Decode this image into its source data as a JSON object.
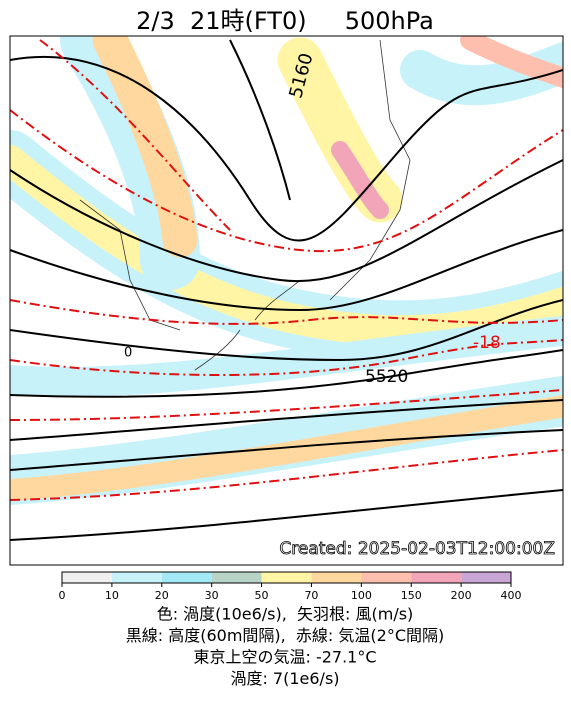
{
  "header": {
    "title": "2/3  21時(FT0)     500hPa"
  },
  "map": {
    "contour_labels": [
      "5160",
      "5520",
      "-18",
      "0"
    ],
    "created": "Created: 2025-02-03T12:00:00Z"
  },
  "colorbar": {
    "ticks": [
      0,
      10,
      20,
      30,
      50,
      70,
      100,
      150,
      200,
      400
    ],
    "colors": [
      "#f0f0f0",
      "#c8f2fa",
      "#a2e8f5",
      "#b7d4c6",
      "#fff5a5",
      "#ffd8a0",
      "#ffbfae",
      "#f2a5b8",
      "#c9a6d6"
    ]
  },
  "caption": [
    "色: 渦度(10e6/s),  矢羽根: 風(m/s)",
    "黒線: 高度(60m間隔),  赤線: 気温(2°C間隔)",
    "東京上空の気温: -27.1°C",
    "渦度: 7(1e6/s)"
  ]
}
